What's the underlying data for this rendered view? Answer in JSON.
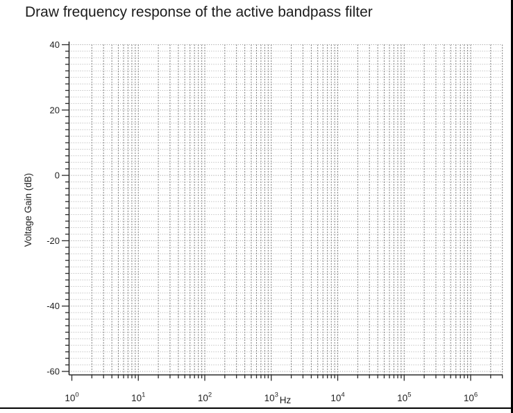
{
  "page": {
    "title": "Draw frequency response of the active bandpass filter"
  },
  "chart_data": {
    "type": "line",
    "title": "Draw frequency response of the active bandpass filter",
    "xlabel": "Hz",
    "ylabel": "Voltage Gain (dB)",
    "x_scale": "log",
    "xlim": [
      1,
      3000000
    ],
    "x_major_tick_base": "10",
    "x_major_tick_exponents": [
      0,
      1,
      2,
      3,
      4,
      5,
      6
    ],
    "x_minor_tick_multiples": [
      2,
      3,
      4,
      5,
      6,
      7,
      8,
      9
    ],
    "ylim": [
      -60,
      40
    ],
    "y_major_ticks": [
      40,
      20,
      0,
      -20,
      -40,
      -60
    ],
    "y_minor_step": 2,
    "grid": "dotted, log decades on x, 2 dB minor / 20 dB major on y",
    "legend": "none",
    "series": []
  },
  "colors": {
    "background": "#ffffff",
    "axis": "#2a2a2a",
    "grid_horizontal_minor": "#a9a9a9",
    "grid_horizontal_major": "#8f8f8f",
    "grid_vertical": "#6f6f6f",
    "text": "#1f1f1f",
    "frame_border": "#000000"
  }
}
